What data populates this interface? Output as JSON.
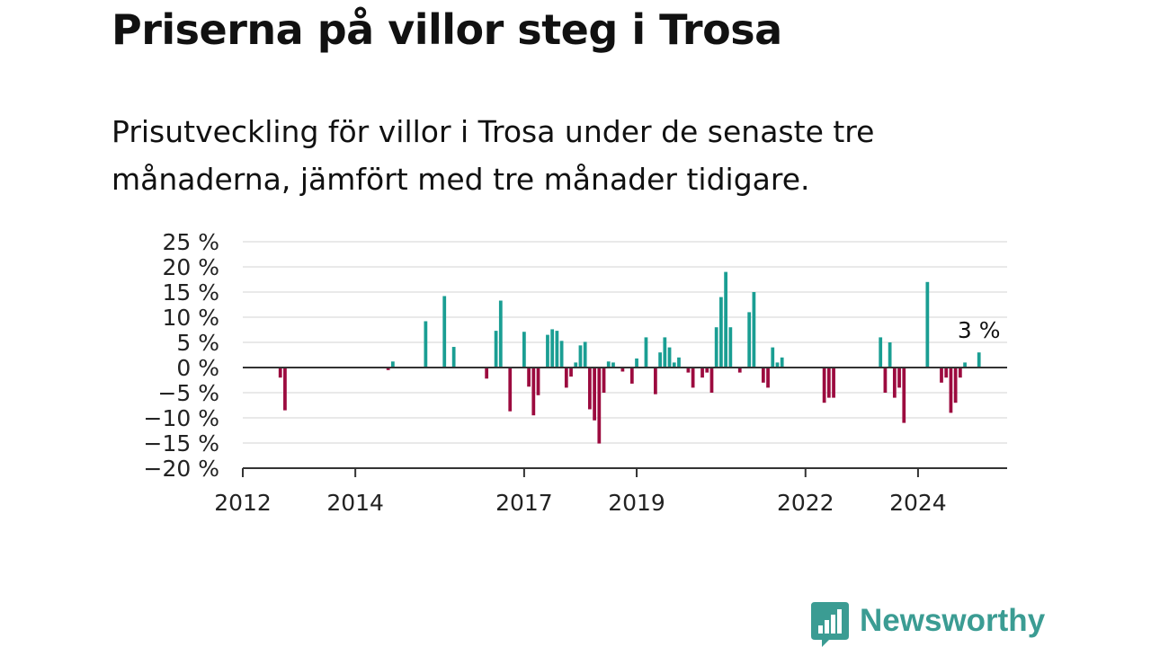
{
  "title": "Priserna på villor steg i Trosa",
  "subtitle": "Prisutveckling för villor i Trosa under de senaste tre månaderna, jämfört med tre månader tidigare.",
  "logo": {
    "text": "Newsworthy",
    "icon": "newsworthy-bar-chart-icon"
  },
  "colors": {
    "positive": "#1a9e93",
    "negative": "#9c0b3f",
    "grid": "#dcdcdc",
    "axis": "#333333",
    "logo": "#3b9c93"
  },
  "chart_data": {
    "type": "bar",
    "title": "Priserna på villor steg i Trosa",
    "subtitle": "Prisutveckling för villor i Trosa under de senaste tre månaderna, jämfört med tre månader tidigare.",
    "xlabel": "",
    "ylabel": "",
    "ylim": [
      -20,
      25
    ],
    "xlim": [
      "2012-01",
      "2025-08"
    ],
    "grid": true,
    "legend": "none",
    "y_ticks": [
      {
        "value": 25,
        "label": "25 %"
      },
      {
        "value": 20,
        "label": "20 %"
      },
      {
        "value": 15,
        "label": "15 %"
      },
      {
        "value": 10,
        "label": "10 %"
      },
      {
        "value": 5,
        "label": "5 %"
      },
      {
        "value": 0,
        "label": "0 %"
      },
      {
        "value": -5,
        "label": "−5 %"
      },
      {
        "value": -10,
        "label": "−10 %"
      },
      {
        "value": -15,
        "label": "−15 %"
      },
      {
        "value": -20,
        "label": "−20 %"
      }
    ],
    "x_ticks": [
      {
        "value": "2012-01",
        "label": "2012"
      },
      {
        "value": "2014-01",
        "label": "2014"
      },
      {
        "value": "2017-01",
        "label": "2017"
      },
      {
        "value": "2019-01",
        "label": "2019"
      },
      {
        "value": "2022-01",
        "label": "2022"
      },
      {
        "value": "2024-01",
        "label": "2024"
      }
    ],
    "annotation": {
      "date": "2025-02",
      "value": 3,
      "label": "3 %"
    },
    "series": [
      {
        "points": [
          {
            "date": "2012-09",
            "value": -2
          },
          {
            "date": "2012-10",
            "value": -8.5
          },
          {
            "date": "2014-08",
            "value": -0.5
          },
          {
            "date": "2014-09",
            "value": 1.2
          },
          {
            "date": "2015-04",
            "value": 9.2
          },
          {
            "date": "2015-08",
            "value": 14.2
          },
          {
            "date": "2015-10",
            "value": 4.1
          },
          {
            "date": "2016-05",
            "value": -2.2
          },
          {
            "date": "2016-07",
            "value": 7.3
          },
          {
            "date": "2016-08",
            "value": 13.3
          },
          {
            "date": "2016-10",
            "value": -8.7
          },
          {
            "date": "2017-01",
            "value": 7.1
          },
          {
            "date": "2017-02",
            "value": -3.8
          },
          {
            "date": "2017-03",
            "value": -9.5
          },
          {
            "date": "2017-04",
            "value": -5.5
          },
          {
            "date": "2017-06",
            "value": 6.5
          },
          {
            "date": "2017-07",
            "value": 7.6
          },
          {
            "date": "2017-08",
            "value": 7.3
          },
          {
            "date": "2017-09",
            "value": 5.3
          },
          {
            "date": "2017-10",
            "value": -4
          },
          {
            "date": "2017-11",
            "value": -1.8
          },
          {
            "date": "2017-12",
            "value": 1
          },
          {
            "date": "2018-01",
            "value": 4.4
          },
          {
            "date": "2018-02",
            "value": 5.1
          },
          {
            "date": "2018-03",
            "value": -8.3
          },
          {
            "date": "2018-04",
            "value": -10.5
          },
          {
            "date": "2018-05",
            "value": -15.1
          },
          {
            "date": "2018-06",
            "value": -5
          },
          {
            "date": "2018-07",
            "value": 1.2
          },
          {
            "date": "2018-08",
            "value": 1
          },
          {
            "date": "2018-10",
            "value": -0.8
          },
          {
            "date": "2018-12",
            "value": -3.2
          },
          {
            "date": "2019-01",
            "value": 1.8
          },
          {
            "date": "2019-03",
            "value": 6
          },
          {
            "date": "2019-05",
            "value": -5.3
          },
          {
            "date": "2019-06",
            "value": 3
          },
          {
            "date": "2019-07",
            "value": 6
          },
          {
            "date": "2019-08",
            "value": 4
          },
          {
            "date": "2019-09",
            "value": 1
          },
          {
            "date": "2019-10",
            "value": 2
          },
          {
            "date": "2019-12",
            "value": -1
          },
          {
            "date": "2020-01",
            "value": -4
          },
          {
            "date": "2020-03",
            "value": -2
          },
          {
            "date": "2020-04",
            "value": -1
          },
          {
            "date": "2020-05",
            "value": -5
          },
          {
            "date": "2020-06",
            "value": 8
          },
          {
            "date": "2020-07",
            "value": 14
          },
          {
            "date": "2020-08",
            "value": 19
          },
          {
            "date": "2020-09",
            "value": 8
          },
          {
            "date": "2020-11",
            "value": -1
          },
          {
            "date": "2021-01",
            "value": 11
          },
          {
            "date": "2021-02",
            "value": 15
          },
          {
            "date": "2021-04",
            "value": -3
          },
          {
            "date": "2021-05",
            "value": -4
          },
          {
            "date": "2021-06",
            "value": 4
          },
          {
            "date": "2021-07",
            "value": 1
          },
          {
            "date": "2021-08",
            "value": 2
          },
          {
            "date": "2022-05",
            "value": -7
          },
          {
            "date": "2022-06",
            "value": -6
          },
          {
            "date": "2022-07",
            "value": -6
          },
          {
            "date": "2023-05",
            "value": 6
          },
          {
            "date": "2023-06",
            "value": -5
          },
          {
            "date": "2023-07",
            "value": 5
          },
          {
            "date": "2023-08",
            "value": -6
          },
          {
            "date": "2023-09",
            "value": -4
          },
          {
            "date": "2023-10",
            "value": -11
          },
          {
            "date": "2024-03",
            "value": 17
          },
          {
            "date": "2024-06",
            "value": -3
          },
          {
            "date": "2024-07",
            "value": -2
          },
          {
            "date": "2024-08",
            "value": -9
          },
          {
            "date": "2024-09",
            "value": -7
          },
          {
            "date": "2024-10",
            "value": -2
          },
          {
            "date": "2024-11",
            "value": 1
          },
          {
            "date": "2025-02",
            "value": 3
          }
        ]
      }
    ]
  }
}
